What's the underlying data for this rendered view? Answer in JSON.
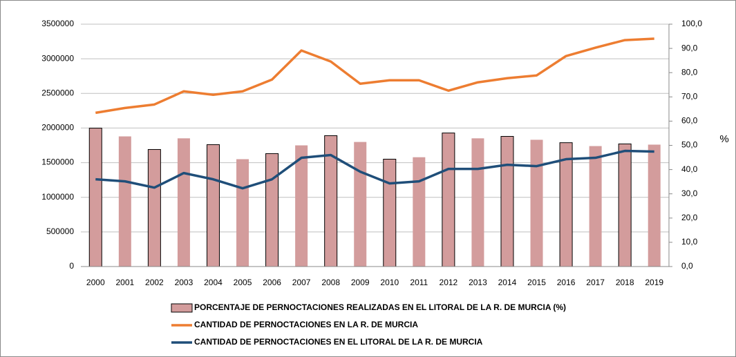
{
  "chart_data": {
    "type": "bar",
    "categories": [
      "2000",
      "2001",
      "2002",
      "2003",
      "2004",
      "2005",
      "2006",
      "2007",
      "2008",
      "2009",
      "2010",
      "2011",
      "2012",
      "2013",
      "2014",
      "2015",
      "2016",
      "2017",
      "2018",
      "2019"
    ],
    "ylim": [
      0,
      3500000
    ],
    "yticks": [
      0,
      500000,
      1000000,
      1500000,
      2000000,
      2500000,
      3000000,
      3500000
    ],
    "y2lim": [
      0,
      100
    ],
    "y2ticks": [
      {
        "value": 0,
        "label": "0,0"
      },
      {
        "value": 10,
        "label": "10,0"
      },
      {
        "value": 20,
        "label": "20,0"
      },
      {
        "value": 30,
        "label": "30,0"
      },
      {
        "value": 40,
        "label": "40,0"
      },
      {
        "value": 50,
        "label": "50,0"
      },
      {
        "value": 60,
        "label": "60,0"
      },
      {
        "value": 70,
        "label": "70,0"
      },
      {
        "value": 80,
        "label": "80,0"
      },
      {
        "value": 90,
        "label": "90,0"
      },
      {
        "value": 100,
        "label": "100,0"
      }
    ],
    "y2label": "%",
    "grid": true,
    "legend": "bottom",
    "series": [
      {
        "name": "PORCENTAJE DE PERNOCTACIONES REALIZADAS EN EL LITORAL DE LA R. DE MURCIA (%)",
        "type": "bar",
        "axis": "y2",
        "color": "#d39c9c",
        "values": [
          57.1,
          53.7,
          48.3,
          52.9,
          50.3,
          44.3,
          46.6,
          50.0,
          54.0,
          51.4,
          44.3,
          45.1,
          55.1,
          52.9,
          53.7,
          52.3,
          51.1,
          49.7,
          50.6,
          50.3
        ]
      },
      {
        "name": "CANTIDAD DE PERNOCTACIONES EN LA R. DE MURCIA",
        "type": "line",
        "color": "#ed7d31",
        "values": [
          2220000,
          2290000,
          2340000,
          2530000,
          2480000,
          2530000,
          2700000,
          3120000,
          2960000,
          2640000,
          2690000,
          2690000,
          2540000,
          2660000,
          2720000,
          2760000,
          3040000,
          3160000,
          3270000,
          3290000
        ]
      },
      {
        "name": "CANTIDAD DE PERNOCTACIONES EN EL LITORAL DE LA R. DE MURCIA",
        "type": "line",
        "color": "#1f4e79",
        "values": [
          1260000,
          1230000,
          1140000,
          1350000,
          1260000,
          1130000,
          1260000,
          1570000,
          1610000,
          1370000,
          1200000,
          1230000,
          1410000,
          1410000,
          1470000,
          1450000,
          1550000,
          1570000,
          1670000,
          1660000
        ]
      }
    ]
  }
}
